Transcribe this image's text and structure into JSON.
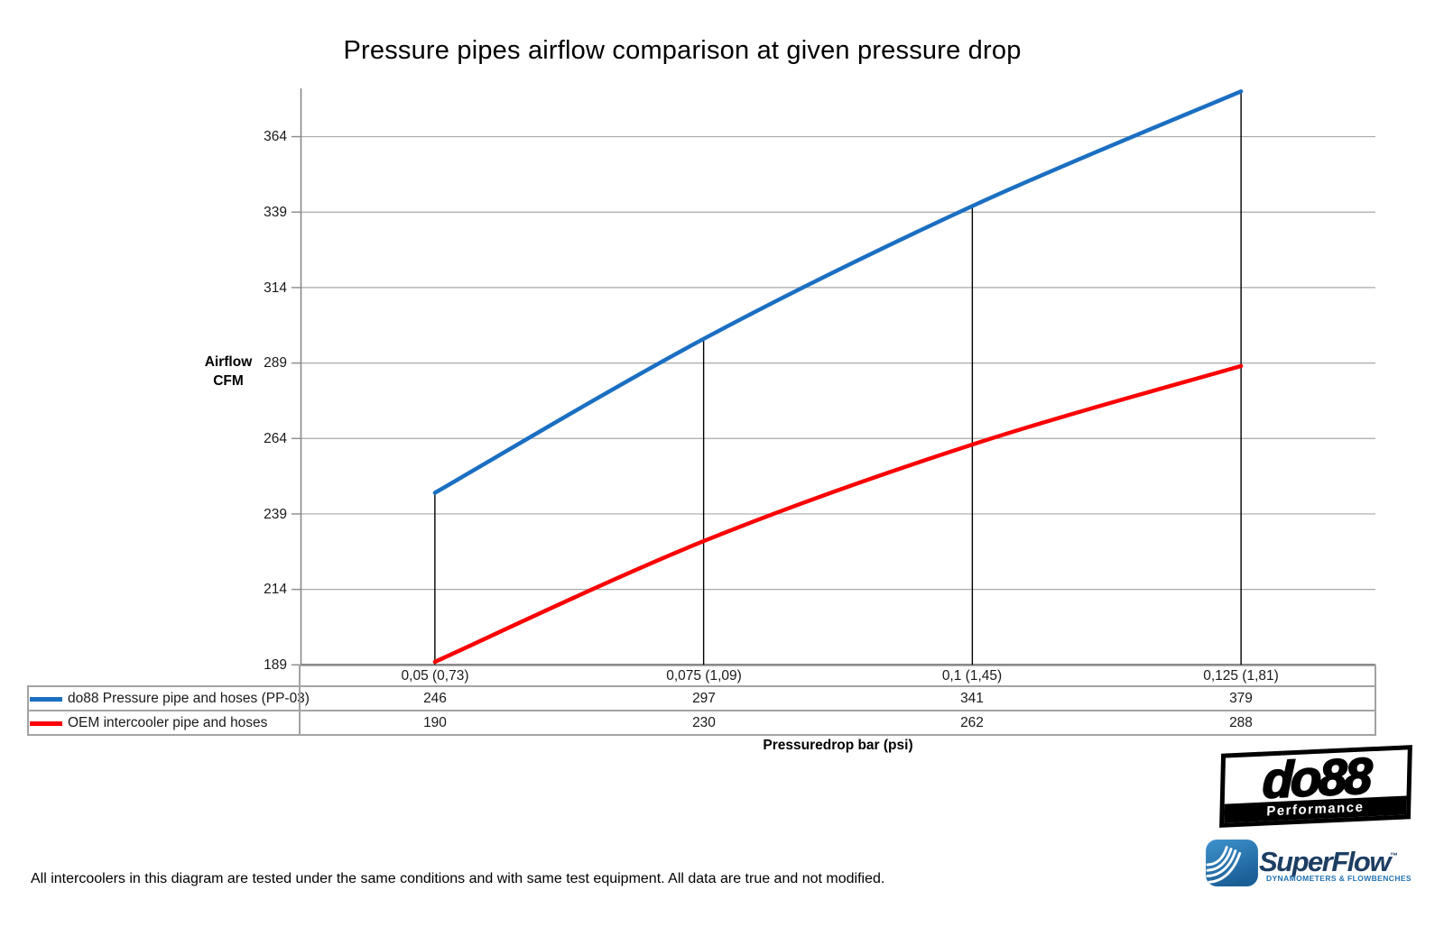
{
  "title": "Pressure pipes airflow comparison at given pressure drop",
  "chart_data": {
    "type": "line",
    "title": "Pressure pipes airflow comparison at given pressure drop",
    "categories": [
      "0,05 (0,73)",
      "0,075 (1,09)",
      "0,1 (1,45)",
      "0,125 (1,81)"
    ],
    "series": [
      {
        "name": "do88 Pressure pipe and hoses (PP-03)",
        "color": "#1b6fc2",
        "values": [
          246,
          297,
          341,
          379
        ]
      },
      {
        "name": "OEM intercooler pipe and hoses",
        "color": "#fb0000",
        "values": [
          190,
          230,
          262,
          288
        ]
      }
    ],
    "xlabel": "Pressuredrop bar (psi)",
    "ylabel_lines": [
      "Airflow",
      "CFM"
    ],
    "yticks": [
      189,
      214,
      239,
      264,
      289,
      314,
      339,
      364
    ],
    "ylim": [
      189,
      380
    ],
    "grid": "horizontal-only",
    "legend_position": "table-left",
    "smooth": true,
    "drop_lines": "vertical black lines from x-axis up to do88 series points"
  },
  "footer_note": "All intercoolers in this diagram are tested under the same conditions and with same test equipment. All data are true and not modified.",
  "logos": {
    "do88": {
      "title": "do88",
      "subtitle": "Performance"
    },
    "superflow": {
      "title": "SuperFlow",
      "tm": "™",
      "subtitle": "DYNAMOMETERS & FLOWBENCHES"
    }
  },
  "colors": {
    "do88_series": "#1b6fc2",
    "oem_series": "#fb0000",
    "gridline": "#a9a9a9",
    "axis": "#8a8a8a",
    "table_border": "#a3a3a3",
    "superflow_blue": "#2b7cba",
    "superflow_navy": "#1c3e63"
  }
}
